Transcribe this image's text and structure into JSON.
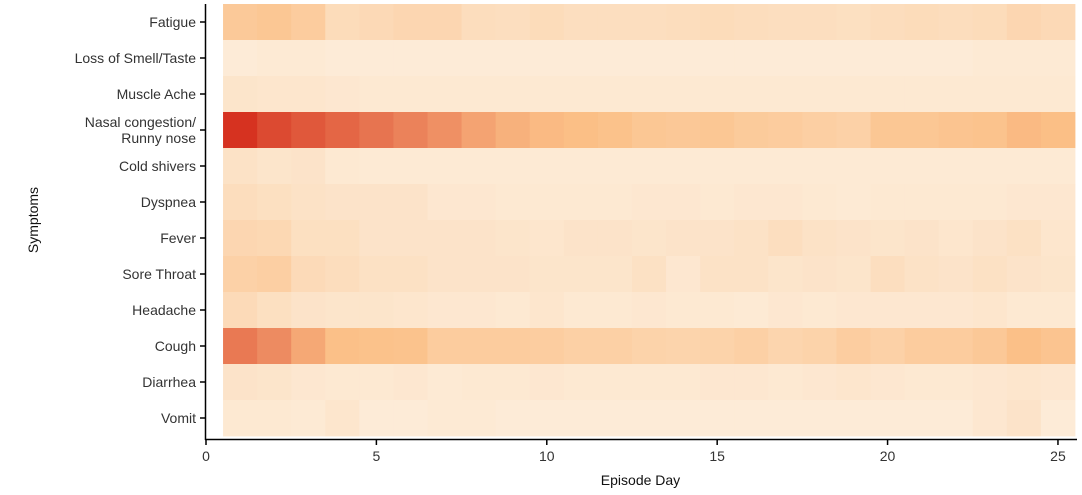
{
  "chart_data": {
    "type": "heatmap",
    "xlabel": "Episode Day",
    "ylabel": "Symptoms",
    "xlim": [
      0,
      25.5
    ],
    "x_ticks": [
      0,
      5,
      10,
      15,
      20,
      25
    ],
    "x": [
      1,
      2,
      3,
      4,
      5,
      6,
      7,
      8,
      9,
      10,
      11,
      12,
      13,
      14,
      15,
      16,
      17,
      18,
      19,
      20,
      21,
      22,
      23,
      24,
      25
    ],
    "symptoms": [
      [
        "Fatigue"
      ],
      [
        "Loss of Smell/Taste"
      ],
      [
        "Muscle Ache"
      ],
      [
        "Nasal congestion/",
        "Runny nose"
      ],
      [
        "Cold shivers"
      ],
      [
        "Dyspnea"
      ],
      [
        "Fever"
      ],
      [
        "Sore Throat"
      ],
      [
        "Headache"
      ],
      [
        "Cough"
      ],
      [
        "Diarrhea"
      ],
      [
        "Vomit"
      ]
    ],
    "values": [
      [
        0.32,
        0.34,
        0.3,
        0.18,
        0.2,
        0.22,
        0.22,
        0.17,
        0.16,
        0.18,
        0.16,
        0.16,
        0.16,
        0.17,
        0.18,
        0.17,
        0.16,
        0.16,
        0.15,
        0.17,
        0.18,
        0.17,
        0.18,
        0.22,
        0.2
      ],
      [
        0.06,
        0.07,
        0.07,
        0.06,
        0.06,
        0.06,
        0.06,
        0.06,
        0.06,
        0.06,
        0.06,
        0.06,
        0.06,
        0.06,
        0.06,
        0.06,
        0.06,
        0.06,
        0.06,
        0.06,
        0.06,
        0.06,
        0.07,
        0.07,
        0.07
      ],
      [
        0.11,
        0.1,
        0.1,
        0.09,
        0.08,
        0.08,
        0.08,
        0.08,
        0.08,
        0.08,
        0.08,
        0.08,
        0.08,
        0.08,
        0.08,
        0.08,
        0.08,
        0.08,
        0.08,
        0.08,
        0.08,
        0.08,
        0.08,
        0.08,
        0.08
      ],
      [
        1.0,
        0.9,
        0.84,
        0.78,
        0.72,
        0.66,
        0.6,
        0.52,
        0.46,
        0.42,
        0.4,
        0.38,
        0.34,
        0.33,
        0.34,
        0.31,
        0.3,
        0.28,
        0.26,
        0.34,
        0.34,
        0.36,
        0.37,
        0.42,
        0.4
      ],
      [
        0.13,
        0.11,
        0.12,
        0.08,
        0.07,
        0.07,
        0.07,
        0.07,
        0.07,
        0.07,
        0.07,
        0.07,
        0.07,
        0.07,
        0.07,
        0.07,
        0.07,
        0.07,
        0.07,
        0.07,
        0.07,
        0.07,
        0.07,
        0.07,
        0.07
      ],
      [
        0.17,
        0.15,
        0.13,
        0.12,
        0.12,
        0.12,
        0.09,
        0.09,
        0.08,
        0.08,
        0.08,
        0.08,
        0.09,
        0.09,
        0.08,
        0.09,
        0.09,
        0.08,
        0.07,
        0.08,
        0.08,
        0.08,
        0.08,
        0.09,
        0.09
      ],
      [
        0.22,
        0.21,
        0.15,
        0.15,
        0.12,
        0.12,
        0.12,
        0.12,
        0.11,
        0.1,
        0.12,
        0.12,
        0.11,
        0.12,
        0.12,
        0.13,
        0.16,
        0.13,
        0.12,
        0.11,
        0.12,
        0.1,
        0.12,
        0.14,
        0.1
      ],
      [
        0.26,
        0.28,
        0.19,
        0.17,
        0.14,
        0.14,
        0.12,
        0.12,
        0.12,
        0.11,
        0.11,
        0.11,
        0.14,
        0.09,
        0.13,
        0.13,
        0.11,
        0.12,
        0.11,
        0.16,
        0.13,
        0.12,
        0.14,
        0.12,
        0.11
      ],
      [
        0.19,
        0.15,
        0.12,
        0.11,
        0.11,
        0.1,
        0.09,
        0.09,
        0.08,
        0.1,
        0.08,
        0.08,
        0.09,
        0.08,
        0.08,
        0.07,
        0.09,
        0.08,
        0.09,
        0.09,
        0.09,
        0.09,
        0.1,
        0.08,
        0.08
      ],
      [
        0.7,
        0.62,
        0.5,
        0.39,
        0.38,
        0.37,
        0.3,
        0.3,
        0.3,
        0.29,
        0.27,
        0.27,
        0.25,
        0.24,
        0.25,
        0.27,
        0.23,
        0.25,
        0.29,
        0.26,
        0.3,
        0.3,
        0.33,
        0.39,
        0.36
      ],
      [
        0.12,
        0.11,
        0.09,
        0.08,
        0.08,
        0.09,
        0.07,
        0.08,
        0.08,
        0.09,
        0.08,
        0.08,
        0.08,
        0.08,
        0.09,
        0.09,
        0.08,
        0.09,
        0.1,
        0.09,
        0.08,
        0.08,
        0.09,
        0.1,
        0.09
      ],
      [
        0.08,
        0.08,
        0.07,
        0.1,
        0.06,
        0.06,
        0.07,
        0.07,
        0.06,
        0.06,
        0.06,
        0.06,
        0.06,
        0.06,
        0.06,
        0.06,
        0.06,
        0.06,
        0.06,
        0.06,
        0.06,
        0.06,
        0.09,
        0.12,
        0.06
      ]
    ],
    "color_scale": {
      "low": "#fdf3e5",
      "mid": "#fbbf86",
      "high": "#d63220"
    },
    "grid": false,
    "legend": "none"
  }
}
